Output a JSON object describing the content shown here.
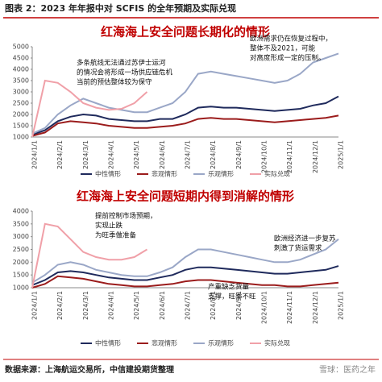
{
  "header": {
    "title": "图表 2：2023 年年报中对 SCFIS 的全年预期及实际兑现"
  },
  "chart_data": [
    {
      "type": "line",
      "title": "红海海上安全问题长期化的情形",
      "categories": [
        "2024/1/1",
        null,
        "2024/2/1",
        null,
        "2024/3/1",
        null,
        "2024/4/1",
        null,
        "2024/5/1",
        null,
        "2024/6/1",
        null,
        "2024/7/1",
        null,
        "2024/8/1",
        null,
        "2024/9/1",
        null,
        "2024/10/1",
        null,
        "2024/11/1",
        null,
        "2024/12/1",
        null,
        "2025/1/1"
      ],
      "series": [
        {
          "name": "中性情形",
          "color": "#1f2a5c",
          "values": [
            1100,
            1300,
            1700,
            1900,
            2000,
            1950,
            1800,
            1750,
            1700,
            1700,
            1800,
            1800,
            2000,
            2300,
            2350,
            2300,
            2300,
            2250,
            2200,
            2150,
            2200,
            2250,
            2400,
            2500,
            2800
          ]
        },
        {
          "name": "悲观情形",
          "color": "#9b1c1c",
          "values": [
            1050,
            1200,
            1600,
            1700,
            1650,
            1600,
            1500,
            1450,
            1400,
            1400,
            1450,
            1500,
            1600,
            1800,
            1850,
            1800,
            1800,
            1750,
            1700,
            1650,
            1700,
            1750,
            1800,
            1850,
            1950
          ]
        },
        {
          "name": "乐观情形",
          "color": "#9aa7c7",
          "values": [
            1150,
            1400,
            2000,
            2400,
            2700,
            2500,
            2300,
            2200,
            2100,
            2100,
            2300,
            2500,
            3000,
            3800,
            3900,
            3800,
            3700,
            3600,
            3500,
            3400,
            3500,
            3800,
            4300,
            4500,
            4700
          ]
        },
        {
          "name": "实际兑现",
          "color": "#f0a0a8",
          "values": [
            1000,
            3500,
            3400,
            3000,
            2500,
            2300,
            2200,
            2250,
            2500,
            3000,
            null,
            null,
            null,
            null,
            null,
            null,
            null,
            null,
            null,
            null,
            null,
            null,
            null,
            null,
            null
          ]
        }
      ],
      "ylim": [
        1000,
        5000
      ],
      "yticks": [
        1000,
        1500,
        2000,
        2500,
        3000,
        3500,
        4000,
        4500,
        5000
      ],
      "annotations": [
        {
          "lines": [
            "多条航线无法通过苏伊士运河",
            "的情况会将形成一场供应链危机",
            "当前的预估整体较为保守"
          ]
        },
        {
          "lines": [
            "欧洲需求仍在恢复过程中，",
            "整体不及2021，可能",
            "对高度形成一定的压制。"
          ]
        }
      ]
    },
    {
      "type": "line",
      "title": "红海海上安全问题短期内得到消解的情形",
      "categories": [
        "2024/1/1",
        null,
        "2024/2/1",
        null,
        "2024/3/1",
        null,
        "2024/4/1",
        null,
        "2024/5/1",
        null,
        "2024/6/1",
        null,
        "2024/7/1",
        null,
        "2024/8/1",
        null,
        "2024/9/1",
        null,
        "2024/10/1",
        null,
        "2024/11/1",
        null,
        "2024/12/1",
        null,
        "2025/1/1"
      ],
      "series": [
        {
          "name": "中性情形",
          "color": "#1f2a5c",
          "values": [
            1100,
            1300,
            1600,
            1650,
            1600,
            1500,
            1400,
            1350,
            1300,
            1300,
            1400,
            1500,
            1700,
            1800,
            1800,
            1750,
            1700,
            1650,
            1600,
            1550,
            1550,
            1600,
            1650,
            1700,
            1850
          ]
        },
        {
          "name": "悲观情形",
          "color": "#9b1c1c",
          "values": [
            1000,
            1150,
            1450,
            1400,
            1350,
            1250,
            1150,
            1100,
            1050,
            1050,
            1100,
            1150,
            1250,
            1300,
            1300,
            1250,
            1200,
            1150,
            1100,
            1100,
            1050,
            1050,
            1100,
            1150,
            1200
          ]
        },
        {
          "name": "乐观情形",
          "color": "#9aa7c7",
          "values": [
            1200,
            1500,
            1900,
            2000,
            1900,
            1700,
            1600,
            1500,
            1450,
            1450,
            1600,
            1800,
            2200,
            2500,
            2500,
            2400,
            2300,
            2200,
            2100,
            2000,
            2000,
            2100,
            2300,
            2500,
            2900
          ]
        },
        {
          "name": "实际兑现",
          "color": "#f0a0a8",
          "values": [
            1000,
            3500,
            3400,
            2900,
            2400,
            2200,
            2100,
            2100,
            2200,
            2500,
            null,
            null,
            null,
            null,
            null,
            null,
            null,
            null,
            null,
            null,
            null,
            null,
            null,
            null,
            null
          ]
        }
      ],
      "ylim": [
        1000,
        4000
      ],
      "yticks": [
        1000,
        1500,
        2000,
        2500,
        3000,
        3500,
        4000
      ],
      "annotations": [
        {
          "lines": [
            "提前控制市场预期，",
            "实现止跌",
            "为旺季做准备"
          ]
        },
        {
          "lines": [
            "欧洲经济进一步复苏",
            "刺激了货运需求"
          ]
        },
        {
          "lines": [
            "产重缺乏货量",
            "支撑，旺季不旺"
          ]
        }
      ]
    }
  ],
  "footer": {
    "source": "数据来源：上海航运交易所，中信建投期货整理",
    "watermark": "雪球：医药之年"
  }
}
